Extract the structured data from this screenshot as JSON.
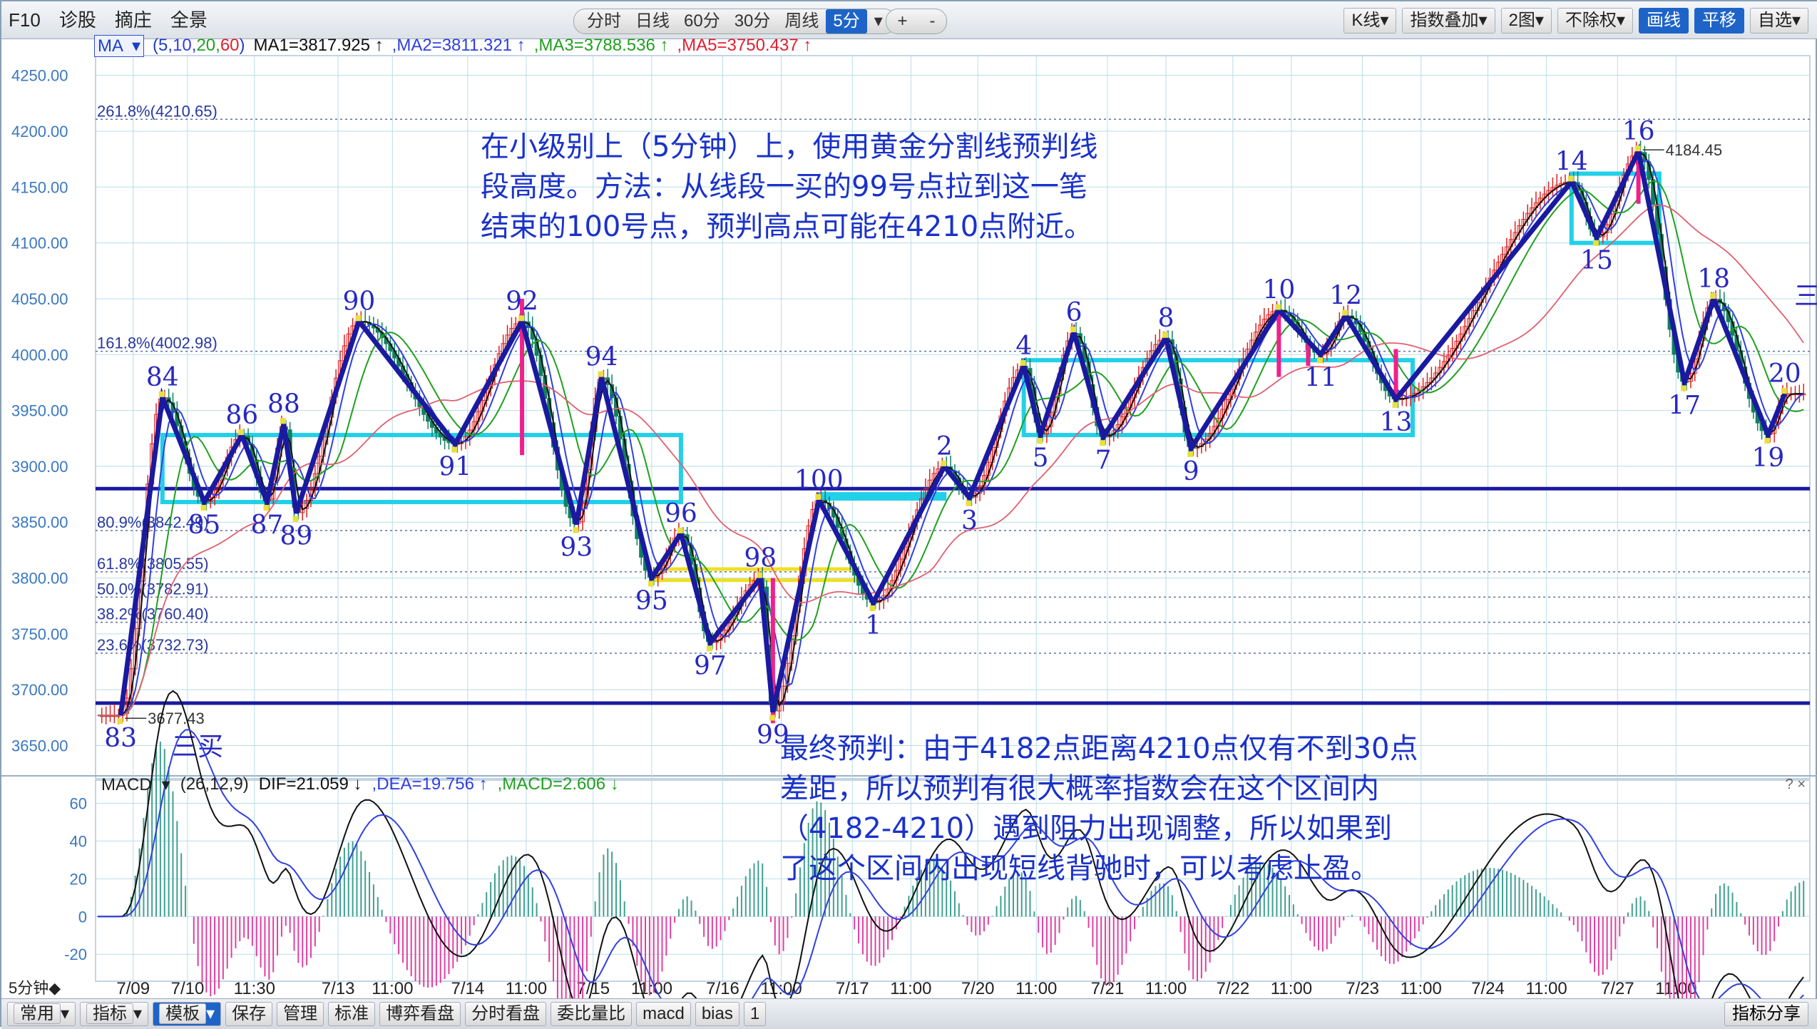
{
  "toolbar": {
    "left": [
      "F10",
      "诊股",
      "摘庄",
      "全景"
    ],
    "periods": [
      "分时",
      "日线",
      "60分",
      "30分",
      "周线",
      "5分"
    ],
    "active_period": "5分",
    "zoom": [
      "+",
      "-"
    ],
    "right": [
      "K线",
      "指数叠加",
      "2图",
      "不除权",
      "画线",
      "平移",
      "自选"
    ],
    "right_active": [
      "画线",
      "平移"
    ]
  },
  "ma_legend": {
    "button": "MA",
    "params_open": "(5,",
    "p10": "10,",
    "p20": "20,",
    "p60": "60",
    "params_close": ")",
    "ma1": "MA1=3817.925 ↑",
    "ma2": ",MA2=3811.321 ↑",
    "ma3": ",MA3=3788.536 ↑",
    "ma5": ",MA5=3750.437 ↑"
  },
  "colors": {
    "grid": "#b8dde8",
    "axis_text": "#3a78c0",
    "zhongshu": "#22d0e8",
    "bi": "#1a1aa0",
    "ma1": "#101010",
    "ma2": "#3040e0",
    "ma3": "#20a020",
    "ma5": "#e06070",
    "macd_up": "#40a090",
    "macd_down": "#e040a0"
  },
  "price_axis": [
    "4250.00",
    "4200.00",
    "4150.00",
    "4100.00",
    "4050.00",
    "4000.00",
    "3950.00",
    "3900.00",
    "3850.00",
    "3800.00",
    "3750.00",
    "3700.00",
    "3650.00"
  ],
  "fib_levels": [
    {
      "label": "261.8%(4210.65)",
      "value": 4210.65
    },
    {
      "label": "161.8%(4002.98)",
      "value": 4002.98
    },
    {
      "label": "80.9%(3842.49)",
      "value": 3842.49
    },
    {
      "label": "61.8%(3805.55)",
      "value": 3805.55
    },
    {
      "label": "50.0%(3782.91)",
      "value": 3782.91
    },
    {
      "label": "38.2%(3760.40)",
      "value": 3760.4
    },
    {
      "label": "23.6%(3732.73)",
      "value": 3732.73
    }
  ],
  "support_lines": [
    3880,
    3688
  ],
  "price_labels": {
    "low": "3677.43",
    "high": "4184.45"
  },
  "bi_points": [
    {
      "label": "83",
      "t": 0.6,
      "p": 3677
    },
    {
      "label": "84",
      "t": 1.6,
      "p": 3962
    },
    {
      "label": "85",
      "t": 2.6,
      "p": 3868
    },
    {
      "label": "86",
      "t": 3.5,
      "p": 3928
    },
    {
      "label": "87",
      "t": 4.1,
      "p": 3868
    },
    {
      "label": "88",
      "t": 4.5,
      "p": 3938
    },
    {
      "label": "89",
      "t": 4.8,
      "p": 3858
    },
    {
      "label": "90",
      "t": 6.3,
      "p": 4030
    },
    {
      "label": "91",
      "t": 8.6,
      "p": 3920
    },
    {
      "label": "92",
      "t": 10.2,
      "p": 4030
    },
    {
      "label": "93",
      "t": 11.5,
      "p": 3848
    },
    {
      "label": "94",
      "t": 12.1,
      "p": 3980
    },
    {
      "label": "95",
      "t": 13.3,
      "p": 3800
    },
    {
      "label": "96",
      "t": 14.0,
      "p": 3840
    },
    {
      "label": "97",
      "t": 14.7,
      "p": 3742
    },
    {
      "label": "98",
      "t": 15.9,
      "p": 3800
    },
    {
      "label": "99",
      "t": 16.2,
      "p": 3680
    },
    {
      "label": "100",
      "t": 17.3,
      "p": 3870
    },
    {
      "label": "1",
      "t": 18.6,
      "p": 3778
    },
    {
      "label": "2",
      "t": 20.3,
      "p": 3900
    },
    {
      "label": "3",
      "t": 20.9,
      "p": 3872
    },
    {
      "label": "4",
      "t": 22.2,
      "p": 3990
    },
    {
      "label": "5",
      "t": 22.6,
      "p": 3928
    },
    {
      "label": "6",
      "t": 23.4,
      "p": 4020
    },
    {
      "label": "7",
      "t": 24.1,
      "p": 3926
    },
    {
      "label": "8",
      "t": 25.6,
      "p": 4015
    },
    {
      "label": "9",
      "t": 26.2,
      "p": 3916
    },
    {
      "label": "10",
      "t": 28.3,
      "p": 4040
    },
    {
      "label": "11",
      "t": 29.3,
      "p": 4000
    },
    {
      "label": "12",
      "t": 29.9,
      "p": 4035
    },
    {
      "label": "13",
      "t": 31.1,
      "p": 3960
    },
    {
      "label": "14",
      "t": 35.3,
      "p": 4155
    },
    {
      "label": "15",
      "t": 35.9,
      "p": 4105
    },
    {
      "label": "16",
      "t": 36.9,
      "p": 4182
    },
    {
      "label": "17",
      "t": 38.0,
      "p": 3975
    },
    {
      "label": "18",
      "t": 38.7,
      "p": 4050
    },
    {
      "label": "19",
      "t": 40.0,
      "p": 3928
    },
    {
      "label": "20",
      "t": 40.4,
      "p": 3965
    }
  ],
  "side_labels": {
    "sanmai_left": "三买",
    "sanmai_right": "三"
  },
  "zhongshu": [
    {
      "t0": 1.6,
      "t1": 14.0,
      "p0": 3928,
      "p1": 3868
    },
    {
      "t0": 17.3,
      "t1": 20.3,
      "p0": 3875,
      "p1": 3880
    },
    {
      "t0": 22.2,
      "t1": 31.5,
      "p0": 3995,
      "p1": 3928
    },
    {
      "t0": 35.3,
      "t1": 37.4,
      "p0": 4162,
      "p1": 4100
    }
  ],
  "yellow_box": {
    "t0": 13.4,
    "t1": 18.2,
    "p0": 3808,
    "p1": 3798
  },
  "pink_lines": [
    {
      "t": 10.2,
      "p0": 4050,
      "p1": 3910
    },
    {
      "t": 16.2,
      "p0": 3800,
      "p1": 3670
    },
    {
      "t": 28.3,
      "p0": 4040,
      "p1": 3980
    },
    {
      "t": 29.0,
      "p0": 4010,
      "p1": 3990
    },
    {
      "t": 31.1,
      "p0": 4005,
      "p1": 3960
    },
    {
      "t": 36.9,
      "p0": 4185,
      "p1": 4135
    }
  ],
  "x_axis": {
    "period_label": "5分钟◆",
    "labels": [
      {
        "t": 0.9,
        "text": "7/09"
      },
      {
        "t": 2.2,
        "text": "7/10"
      },
      {
        "t": 3.8,
        "text": "11:30"
      },
      {
        "t": 5.8,
        "text": "7/13"
      },
      {
        "t": 7.1,
        "text": "11:00"
      },
      {
        "t": 8.9,
        "text": "7/14"
      },
      {
        "t": 10.3,
        "text": "11:00"
      },
      {
        "t": 11.9,
        "text": "7/15"
      },
      {
        "t": 13.3,
        "text": "11:00"
      },
      {
        "t": 15.0,
        "text": "7/16"
      },
      {
        "t": 16.4,
        "text": "11:00"
      },
      {
        "t": 18.1,
        "text": "7/17"
      },
      {
        "t": 19.5,
        "text": "11:00"
      },
      {
        "t": 21.1,
        "text": "7/20"
      },
      {
        "t": 22.5,
        "text": "11:00"
      },
      {
        "t": 24.2,
        "text": "7/21"
      },
      {
        "t": 25.6,
        "text": "11:00"
      },
      {
        "t": 27.2,
        "text": "7/22"
      },
      {
        "t": 28.6,
        "text": "11:00"
      },
      {
        "t": 30.3,
        "text": "7/23"
      },
      {
        "t": 31.7,
        "text": "11:00"
      },
      {
        "t": 33.3,
        "text": "7/24"
      },
      {
        "t": 34.7,
        "text": "11:00"
      },
      {
        "t": 36.4,
        "text": "7/27"
      },
      {
        "t": 37.8,
        "text": "11:00"
      }
    ]
  },
  "macd": {
    "name": "MACD",
    "params": "(26,12,9)",
    "dif": "DIF=21.059 ↓",
    "dea": ",DEA=19.756 ↑",
    "macd": ",MACD=2.606 ↓",
    "axis": [
      "60",
      "40",
      "20",
      "0",
      "-20"
    ]
  },
  "notes": {
    "note1": "在小级别上（5分钟）上，使用黄金分割线预判线\n段高度。方法：从线段一买的99号点拉到这一笔\n结束的100号点，预判高点可能在4210点附近。",
    "note2": "最终预判：由于4182点距离4210点仅有不到30点\n差距，所以预判有很大概率指数会在这个区间内\n（4182-4210）遇到阻力出现调整，所以如果到\n了这个区间内出现短线背驰时，可以考虑止盈。"
  },
  "bottombar": {
    "left": [
      "常用",
      "指标",
      "模板",
      "保存",
      "管理",
      "标准",
      "博弈看盘",
      "分时看盘",
      "委比量比",
      "macd",
      "bias",
      "1"
    ],
    "active": "模板",
    "right": "指标分享"
  }
}
